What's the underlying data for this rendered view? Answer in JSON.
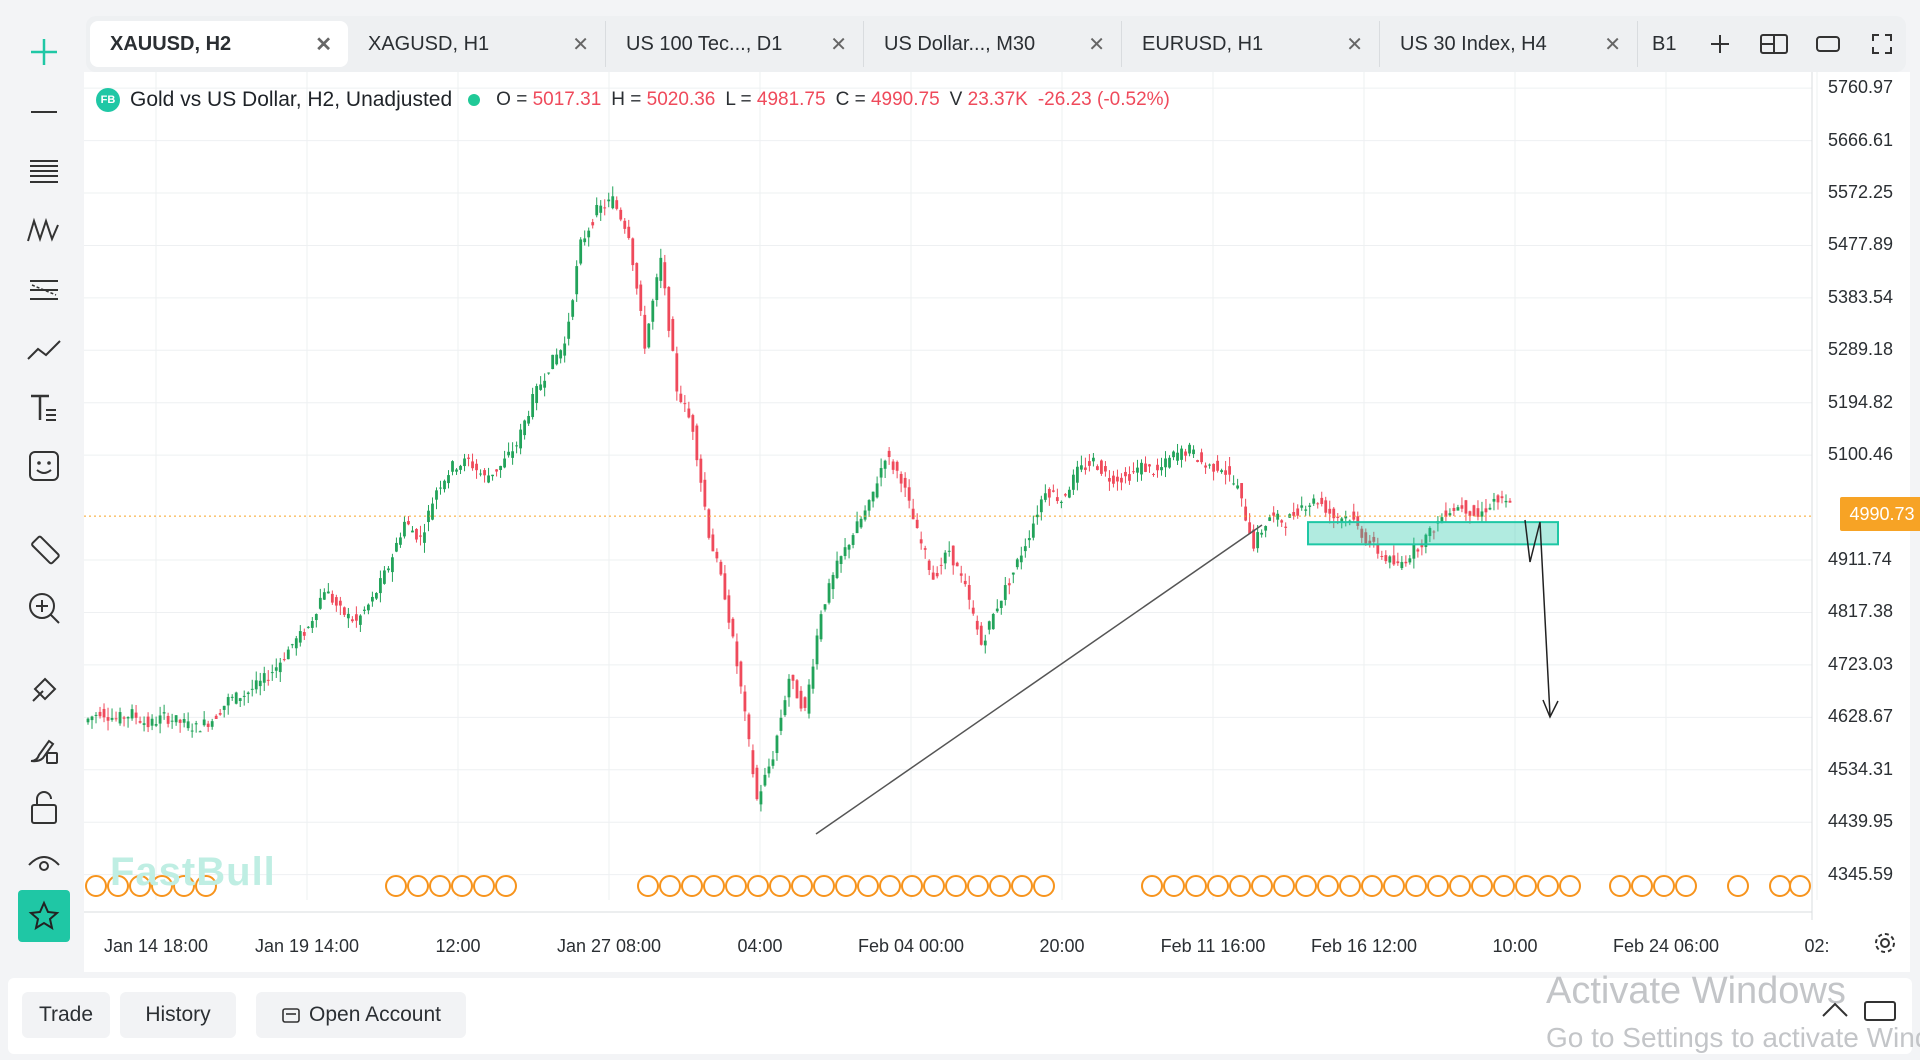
{
  "tabs": [
    {
      "label": "XAUUSD, H2",
      "active": true
    },
    {
      "label": "XAGUSD, H1",
      "active": false
    },
    {
      "label": "US 100 Tec..., D1",
      "active": false
    },
    {
      "label": "US Dollar..., M30",
      "active": false
    },
    {
      "label": "EURUSD, H1",
      "active": false
    },
    {
      "label": "US 30 Index, H4",
      "active": false
    },
    {
      "label": "B1",
      "active": false
    }
  ],
  "tab_tools": [
    "plus-icon",
    "layout-icon",
    "window-icon",
    "fullscreen-icon"
  ],
  "left_tools": [
    "crosshair-plus-icon",
    "horizontal-line-icon",
    "fib-retracement-icon",
    "pattern-icon",
    "parallel-channel-icon",
    "trend-line-icon",
    "text-icon",
    "emoji-icon",
    "ruler-icon",
    "zoom-in-icon",
    "magnet-draw-icon",
    "brush-lock-icon",
    "unlock-icon",
    "eye-icon",
    "star-icon"
  ],
  "legend": {
    "logo": "FB",
    "title": "Gold vs US Dollar, H2, Unadjusted",
    "open_label": "O =",
    "open": "5017.31",
    "high_label": "H =",
    "high": "5020.36",
    "low_label": "L =",
    "low": "4981.75",
    "close_label": "C =",
    "close": "4990.75",
    "volume_label": "V",
    "volume": "23.37K",
    "change": "-26.23 (-0.52%)"
  },
  "current_price": "4990.73",
  "watermark": "FastBull",
  "colors": {
    "up": "#22a35a",
    "down": "#ef4a5b",
    "accent": "#1fc7a5",
    "price_tag": "#f7a325",
    "event_marker": "#f7941d"
  },
  "chart_data": {
    "type": "candlestick",
    "symbol": "XAUUSD",
    "timeframe": "H2",
    "y_ticks": [
      5760.97,
      5666.61,
      5572.25,
      5477.89,
      5383.54,
      5289.18,
      5194.82,
      5100.46,
      4911.74,
      4817.38,
      4723.03,
      4628.67,
      4534.31,
      4439.95,
      4345.59
    ],
    "ylim": [
      4300,
      5790
    ],
    "x_ticks": [
      "Jan 14 18:00",
      "Jan 19 14:00",
      "12:00",
      "Jan 27 08:00",
      "04:00",
      "Feb 04 00:00",
      "20:00",
      "Feb 11 16:00",
      "Feb 16 12:00",
      "10:00",
      "Feb 24 06:00",
      "02:"
    ],
    "price_path": [
      4620,
      4640,
      4625,
      4635,
      4615,
      4630,
      4620,
      4610,
      4625,
      4660,
      4670,
      4690,
      4720,
      4760,
      4790,
      4860,
      4820,
      4800,
      4840,
      4900,
      4980,
      4950,
      5040,
      5080,
      5090,
      5060,
      5080,
      5120,
      5200,
      5260,
      5300,
      5480,
      5540,
      5560,
      5500,
      5300,
      5450,
      5220,
      5150,
      4960,
      4850,
      4680,
      4480,
      4560,
      4700,
      4640,
      4820,
      4900,
      4960,
      5010,
      5100,
      5060,
      4960,
      4880,
      4930,
      4860,
      4760,
      4830,
      4890,
      4960,
      5040,
      5020,
      5070,
      5090,
      5060,
      5060,
      5080,
      5070,
      5100,
      5110,
      5080,
      5080,
      5040,
      4940,
      4990,
      4980,
      5010,
      5020,
      4990,
      4990,
      4950,
      4920,
      4900,
      4930,
      4960,
      5000,
      5010,
      4990,
      5020,
      5010
    ],
    "zone": {
      "from": 4940,
      "to": 4980
    },
    "current": 4990.73
  },
  "x_axis_settings_icon": "gear-icon",
  "bottom": {
    "trade": "Trade",
    "history": "History",
    "open_account": "Open Account"
  },
  "activate": {
    "line1": "Activate Windows",
    "line2": "Go to Settings to activate Windows."
  }
}
